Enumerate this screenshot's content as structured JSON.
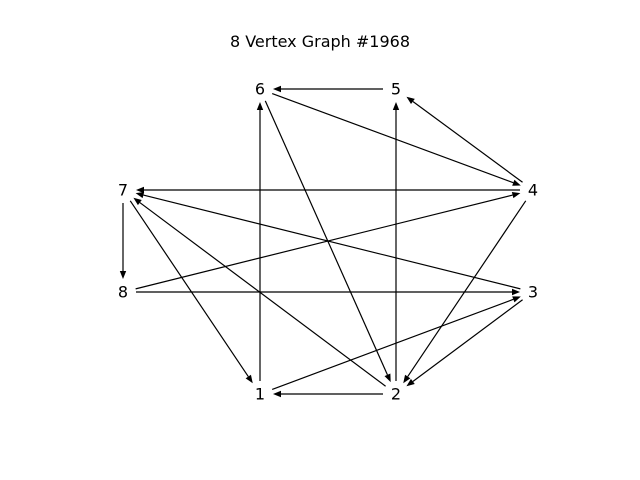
{
  "title": "8 Vertex Graph #1968",
  "nodes": [
    {
      "id": "1",
      "label": "1"
    },
    {
      "id": "2",
      "label": "2"
    },
    {
      "id": "3",
      "label": "3"
    },
    {
      "id": "4",
      "label": "4"
    },
    {
      "id": "5",
      "label": "5"
    },
    {
      "id": "6",
      "label": "6"
    },
    {
      "id": "7",
      "label": "7"
    },
    {
      "id": "8",
      "label": "8"
    }
  ],
  "edges": [
    {
      "from": "5",
      "to": "6"
    },
    {
      "from": "4",
      "to": "5"
    },
    {
      "from": "6",
      "to": "4"
    },
    {
      "from": "4",
      "to": "7"
    },
    {
      "from": "4",
      "to": "2"
    },
    {
      "from": "8",
      "to": "4"
    },
    {
      "from": "7",
      "to": "8"
    },
    {
      "from": "7",
      "to": "1"
    },
    {
      "from": "2",
      "to": "7"
    },
    {
      "from": "3",
      "to": "7"
    },
    {
      "from": "8",
      "to": "3"
    },
    {
      "from": "3",
      "to": "2"
    },
    {
      "from": "1",
      "to": "3"
    },
    {
      "from": "2",
      "to": "1"
    },
    {
      "from": "1",
      "to": "6"
    },
    {
      "from": "6",
      "to": "2"
    },
    {
      "from": "2",
      "to": "5"
    }
  ]
}
